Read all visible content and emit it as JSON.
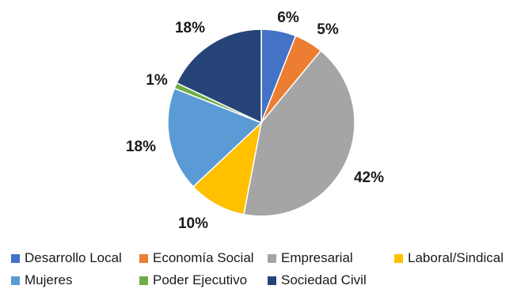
{
  "chart_data": {
    "type": "pie",
    "title": "",
    "categories": [
      "Desarrollo Local",
      "Economía Social",
      "Empresarial",
      "Laboral/Sindical",
      "Mujeres",
      "Poder Ejecutivo",
      "Sociedad Civil"
    ],
    "values": [
      6,
      5,
      42,
      10,
      18,
      1,
      18
    ],
    "labels": [
      "6%",
      "5%",
      "42%",
      "10%",
      "18%",
      "1%",
      "18%"
    ],
    "colors": [
      "#4472C4",
      "#ED7D31",
      "#A5A5A5",
      "#FFC000",
      "#5B9BD5",
      "#70AD47",
      "#264478"
    ],
    "legend_position": "bottom"
  }
}
